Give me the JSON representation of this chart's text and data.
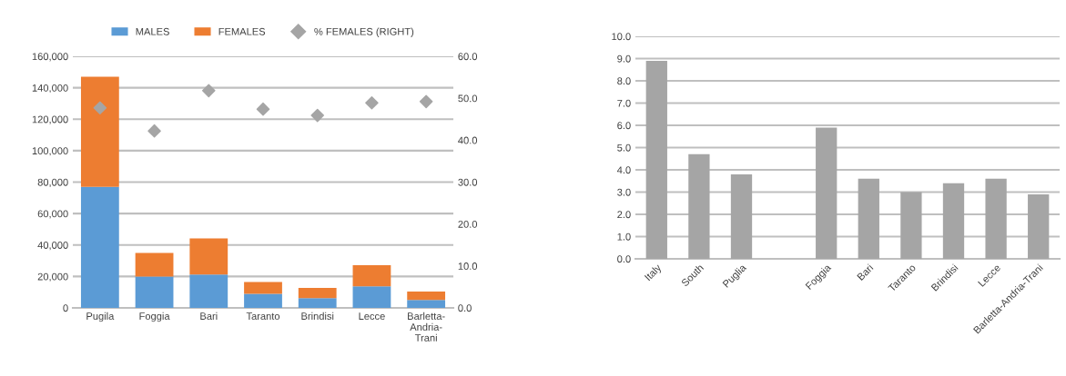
{
  "chart_data": [
    {
      "type": "bar",
      "stacked": true,
      "categories": [
        "Pugila",
        "Foggia",
        "Bari",
        "Taranto",
        "Brindisi",
        "Lecce",
        "Barletta-\nAndria-\nTrani"
      ],
      "series": [
        {
          "name": "MALES",
          "color": "#5b9bd5",
          "values": [
            77000,
            20000,
            21200,
            8900,
            6200,
            13700,
            5000
          ]
        },
        {
          "name": "FEMALES",
          "color": "#ed7d31",
          "values": [
            70000,
            15000,
            23000,
            7500,
            6500,
            13500,
            5400
          ]
        },
        {
          "name": "% FEMALES (RIGHT)",
          "type": "scatter",
          "axis": "y2",
          "marker": "diamond",
          "color": "#a5a5a5",
          "values": [
            47.7,
            42.2,
            51.8,
            47.4,
            45.9,
            48.9,
            49.2
          ]
        }
      ],
      "ylim": [
        0,
        160000
      ],
      "yticks": [
        {
          "value": 0,
          "label": "0"
        },
        {
          "value": 20000,
          "label": "20,000"
        },
        {
          "value": 40000,
          "label": "40,000"
        },
        {
          "value": 60000,
          "label": "60,000"
        },
        {
          "value": 80000,
          "label": "80,000"
        },
        {
          "value": 100000,
          "label": "100,000"
        },
        {
          "value": 120000,
          "label": "120,000"
        },
        {
          "value": 140000,
          "label": "140,000"
        },
        {
          "value": 160000,
          "label": "160,000"
        }
      ],
      "y2lim": [
        0,
        60
      ],
      "y2ticks": [
        {
          "value": 0,
          "label": "0.0"
        },
        {
          "value": 10,
          "label": "10.0"
        },
        {
          "value": 20,
          "label": "20.0"
        },
        {
          "value": 30,
          "label": "30.0"
        },
        {
          "value": 40,
          "label": "40.0"
        },
        {
          "value": 50,
          "label": "50.0"
        },
        {
          "value": 60,
          "label": "60.0"
        }
      ],
      "grid": "y",
      "legend": "top"
    },
    {
      "type": "bar",
      "categories": [
        "Italy",
        "South",
        "Puglia",
        null,
        "Foggia",
        "Bari",
        "Taranto",
        "Brindisi",
        "Lecce",
        "Barletta-Andria-Trani"
      ],
      "values": [
        8.9,
        4.7,
        3.8,
        null,
        5.9,
        3.6,
        3.0,
        3.4,
        3.6,
        2.9
      ],
      "color": "#a5a5a5",
      "ylim": [
        0,
        10
      ],
      "yticks": [
        {
          "value": 0,
          "label": "0.0"
        },
        {
          "value": 1,
          "label": "1.0"
        },
        {
          "value": 2,
          "label": "2.0"
        },
        {
          "value": 3,
          "label": "3.0"
        },
        {
          "value": 4,
          "label": "4.0"
        },
        {
          "value": 5,
          "label": "5.0"
        },
        {
          "value": 6,
          "label": "6.0"
        },
        {
          "value": 7,
          "label": "7.0"
        },
        {
          "value": 8,
          "label": "8.0"
        },
        {
          "value": 9,
          "label": "9.0"
        },
        {
          "value": 10,
          "label": "10.0"
        }
      ],
      "grid": "y"
    }
  ]
}
